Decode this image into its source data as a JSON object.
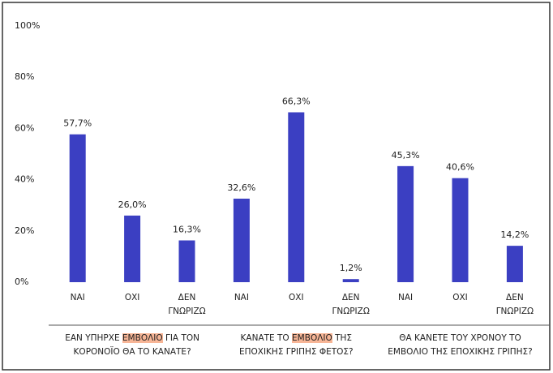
{
  "chart_data": {
    "type": "bar",
    "color": "#3b3fc2",
    "highlight_color": "#f7b596",
    "ylim": [
      0,
      100
    ],
    "yticks": [
      {
        "value": 0,
        "label": "0%"
      },
      {
        "value": 20,
        "label": "20%"
      },
      {
        "value": 40,
        "label": "40%"
      },
      {
        "value": 60,
        "label": "60%"
      },
      {
        "value": 80,
        "label": "80%"
      },
      {
        "value": 100,
        "label": "100%"
      }
    ],
    "groups": [
      {
        "label": [
          [
            "ΕΑΝ ΥΠΗΡΧΕ ",
            "ΕΜΒΟΛΙΟ",
            " ΓΙΑ ΤΟΝ"
          ],
          [
            "ΚΟΡΟΝΟΪΟ ΘΑ ΤΟ ΚΑΝΑΤΕ?"
          ]
        ],
        "highlight": [
          0,
          1
        ],
        "categories": [
          "ΝΑΙ",
          "ΟΧΙ",
          "ΔΕΝ ΓΝΩΡΙΖΩ"
        ],
        "values": [
          57.7,
          26.0,
          16.3
        ],
        "value_labels": [
          "57,7%",
          "26,0%",
          "16,3%"
        ]
      },
      {
        "label": [
          [
            "ΚΑΝΑΤΕ ΤΟ ",
            "ΕΜΒΟΛΙΟ",
            " ΤΗΣ"
          ],
          [
            "ΕΠΟΧΙΚΗΣ ΓΡΙΠΗΣ ΦΕΤΟΣ?"
          ]
        ],
        "highlight": [
          0,
          1
        ],
        "categories": [
          "ΝΑΙ",
          "ΟΧΙ",
          "ΔΕΝ ΓΝΩΡΙΖΩ"
        ],
        "values": [
          32.6,
          66.3,
          1.2
        ],
        "value_labels": [
          "32,6%",
          "66,3%",
          "1,2%"
        ]
      },
      {
        "label": [
          [
            "ΘΑ ΚΑΝΕΤΕ ΤΟΥ ΧΡΟΝΟΥ ΤΟ"
          ],
          [
            "ΕΜΒΟΛΙΟ ΤΗΣ ΕΠΟΧΙΚΗΣ ΓΡΙΠΗΣ?"
          ]
        ],
        "categories": [
          "ΝΑΙ",
          "ΟΧΙ",
          "ΔΕΝ ΓΝΩΡΙΖΩ"
        ],
        "values": [
          45.3,
          40.6,
          14.2
        ],
        "value_labels": [
          "45,3%",
          "40,6%",
          "14,2%"
        ]
      }
    ]
  }
}
